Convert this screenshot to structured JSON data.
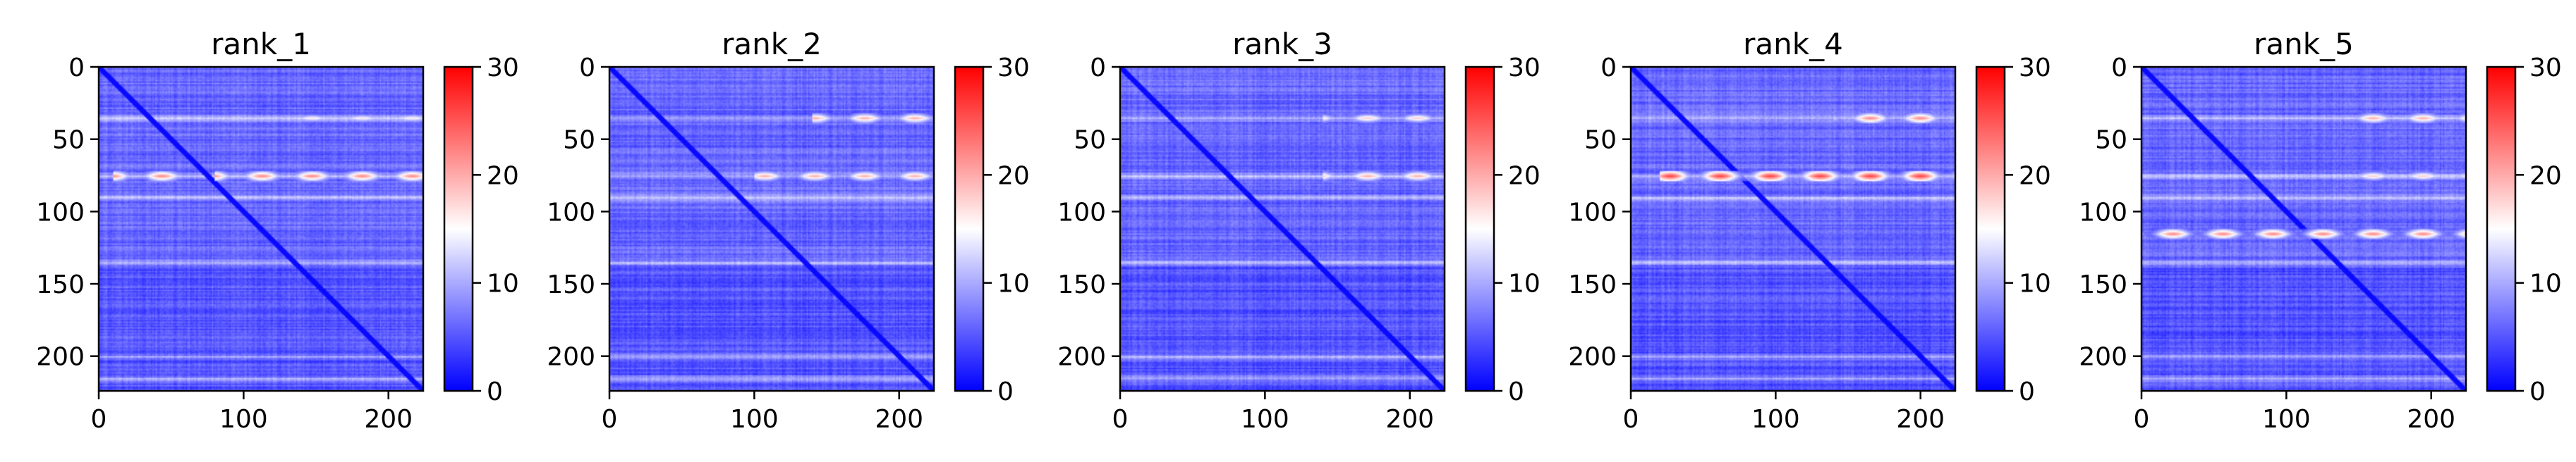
{
  "chart_data": [
    {
      "type": "heatmap",
      "title": "rank_1",
      "size": 224,
      "xticks": [
        0,
        100,
        200
      ],
      "yticks": [
        0,
        50,
        100,
        150,
        200
      ],
      "colorbar": {
        "range": [
          0,
          30
        ],
        "ticks": [
          0,
          10,
          20,
          30
        ]
      },
      "colormap": [
        "#0000ff",
        "#ffffff",
        "#ff0000"
      ],
      "hot_bands": [
        {
          "row": 75,
          "cols": [
            [
              10,
              60
            ],
            [
              80,
              224
            ]
          ],
          "intensity": 22
        },
        {
          "row": 35,
          "cols": [
            [
              140,
              224
            ]
          ],
          "intensity": 16
        }
      ]
    },
    {
      "type": "heatmap",
      "title": "rank_2",
      "size": 224,
      "xticks": [
        0,
        100,
        200
      ],
      "yticks": [
        0,
        50,
        100,
        150,
        200
      ],
      "colorbar": {
        "range": [
          0,
          30
        ],
        "ticks": [
          0,
          10,
          20,
          30
        ]
      },
      "colormap": [
        "#0000ff",
        "#ffffff",
        "#ff0000"
      ],
      "hot_bands": [
        {
          "row": 35,
          "cols": [
            [
              140,
              224
            ]
          ],
          "intensity": 20
        },
        {
          "row": 75,
          "cols": [
            [
              100,
              224
            ]
          ],
          "intensity": 20
        }
      ]
    },
    {
      "type": "heatmap",
      "title": "rank_3",
      "size": 224,
      "xticks": [
        0,
        100,
        200
      ],
      "yticks": [
        0,
        50,
        100,
        150,
        200
      ],
      "colorbar": {
        "range": [
          0,
          30
        ],
        "ticks": [
          0,
          10,
          20,
          30
        ]
      },
      "colormap": [
        "#0000ff",
        "#ffffff",
        "#ff0000"
      ],
      "hot_bands": [
        {
          "row": 35,
          "cols": [
            [
              140,
              224
            ]
          ],
          "intensity": 18
        },
        {
          "row": 75,
          "cols": [
            [
              140,
              224
            ]
          ],
          "intensity": 20
        }
      ]
    },
    {
      "type": "heatmap",
      "title": "rank_4",
      "size": 224,
      "xticks": [
        0,
        100,
        200
      ],
      "yticks": [
        0,
        50,
        100,
        150,
        200
      ],
      "colorbar": {
        "range": [
          0,
          30
        ],
        "ticks": [
          0,
          10,
          20,
          30
        ]
      },
      "colormap": [
        "#0000ff",
        "#ffffff",
        "#ff0000"
      ],
      "hot_bands": [
        {
          "row": 35,
          "cols": [
            [
              140,
              224
            ]
          ],
          "intensity": 22
        },
        {
          "row": 75,
          "cols": [
            [
              20,
              224
            ]
          ],
          "intensity": 26
        }
      ]
    },
    {
      "type": "heatmap",
      "title": "rank_5",
      "size": 224,
      "xticks": [
        0,
        100,
        200
      ],
      "yticks": [
        0,
        50,
        100,
        150,
        200
      ],
      "colorbar": {
        "range": [
          0,
          30
        ],
        "ticks": [
          0,
          10,
          20,
          30
        ]
      },
      "colormap": [
        "#0000ff",
        "#ffffff",
        "#ff0000"
      ],
      "hot_bands": [
        {
          "row": 35,
          "cols": [
            [
              140,
              224
            ]
          ],
          "intensity": 20
        },
        {
          "row": 75,
          "cols": [
            [
              140,
              224
            ]
          ],
          "intensity": 18
        },
        {
          "row": 115,
          "cols": [
            [
              0,
              224
            ]
          ],
          "intensity": 22
        }
      ]
    }
  ]
}
